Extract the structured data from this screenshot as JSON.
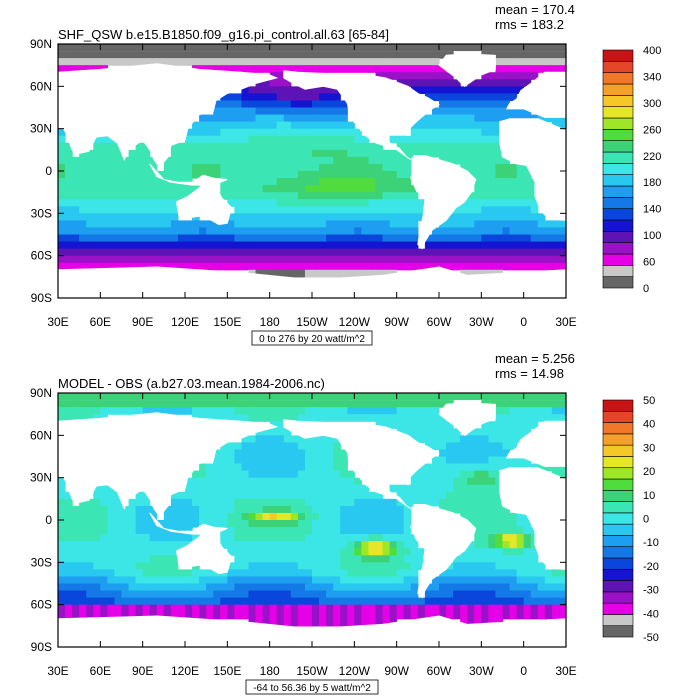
{
  "panels": [
    {
      "title": "SHF_QSW b.e15.B1850.f09_g16.pi_control.all.63 [65-84]",
      "stats": [
        "mean = 170.4",
        "rms = 183.2"
      ],
      "contour_info": "0 to 276 by 20 watt/m^2"
    },
    {
      "title": "MODEL - OBS (a.b27.03.mean.1984-2006.nc)",
      "stats": [
        "mean = 5.256",
        "rms = 14.98"
      ],
      "contour_info": "-64 to 56.36 by 5 watt/m^2"
    }
  ],
  "chart_data": [
    {
      "type": "heatmap",
      "title": "SHF_QSW b.e15.B1850.f09_g16.pi_control.all.63 [65-84]",
      "x_ticks": [
        "30E",
        "60E",
        "90E",
        "120E",
        "150E",
        "180",
        "150W",
        "120W",
        "90W",
        "60W",
        "30W",
        "0",
        "30E"
      ],
      "y_ticks": [
        "90N",
        "60N",
        "30N",
        "0",
        "30S",
        "60S",
        "90S"
      ],
      "xlim": [
        30,
        390
      ],
      "ylim": [
        -90,
        90
      ],
      "colorbar": {
        "labels": [
          "400",
          "340",
          "300",
          "260",
          "220",
          "180",
          "140",
          "100",
          "60",
          "0"
        ],
        "levels": [
          0,
          20,
          40,
          60,
          80,
          100,
          120,
          140,
          160,
          180,
          200,
          220,
          240,
          260,
          280,
          300,
          320,
          340,
          360,
          380,
          400
        ],
        "colors": [
          "#666666",
          "#c8c8c8",
          "#e600e6",
          "#9a12c8",
          "#5e14b4",
          "#1414d2",
          "#0a46dc",
          "#1478e6",
          "#1e9ef0",
          "#28c8f0",
          "#3ce6e6",
          "#3ce6b4",
          "#3cd278",
          "#50dc3c",
          "#a0e628",
          "#e6e628",
          "#f5c828",
          "#f5a028",
          "#f07828",
          "#e64628",
          "#c81414"
        ]
      },
      "mean": 170.4,
      "rms": 183.2
    },
    {
      "type": "heatmap",
      "title": "MODEL - OBS (a.b27.03.mean.1984-2006.nc)",
      "x_ticks": [
        "30E",
        "60E",
        "90E",
        "120E",
        "150E",
        "180",
        "150W",
        "120W",
        "90W",
        "60W",
        "30W",
        "0",
        "30E"
      ],
      "y_ticks": [
        "90N",
        "60N",
        "30N",
        "0",
        "30S",
        "60S",
        "90S"
      ],
      "xlim": [
        30,
        390
      ],
      "ylim": [
        -90,
        90
      ],
      "colorbar": {
        "labels": [
          "50",
          "40",
          "30",
          "20",
          "10",
          "0",
          "-10",
          "-20",
          "-30",
          "-40",
          "-50"
        ],
        "levels": [
          -50,
          -45,
          -40,
          -35,
          -30,
          -25,
          -20,
          -15,
          -10,
          -5,
          0,
          5,
          10,
          15,
          20,
          25,
          30,
          35,
          40,
          45,
          50
        ],
        "colors": [
          "#666666",
          "#c8c8c8",
          "#e600e6",
          "#9a12c8",
          "#5e14b4",
          "#1414d2",
          "#0a46dc",
          "#1478e6",
          "#1e9ef0",
          "#28c8f0",
          "#3ce6e6",
          "#3ce6b4",
          "#3cd278",
          "#50dc3c",
          "#a0e628",
          "#e6e628",
          "#f5c828",
          "#f5a028",
          "#f07828",
          "#e64628",
          "#c81414"
        ]
      },
      "mean": 5.256,
      "rms": 14.98
    }
  ]
}
